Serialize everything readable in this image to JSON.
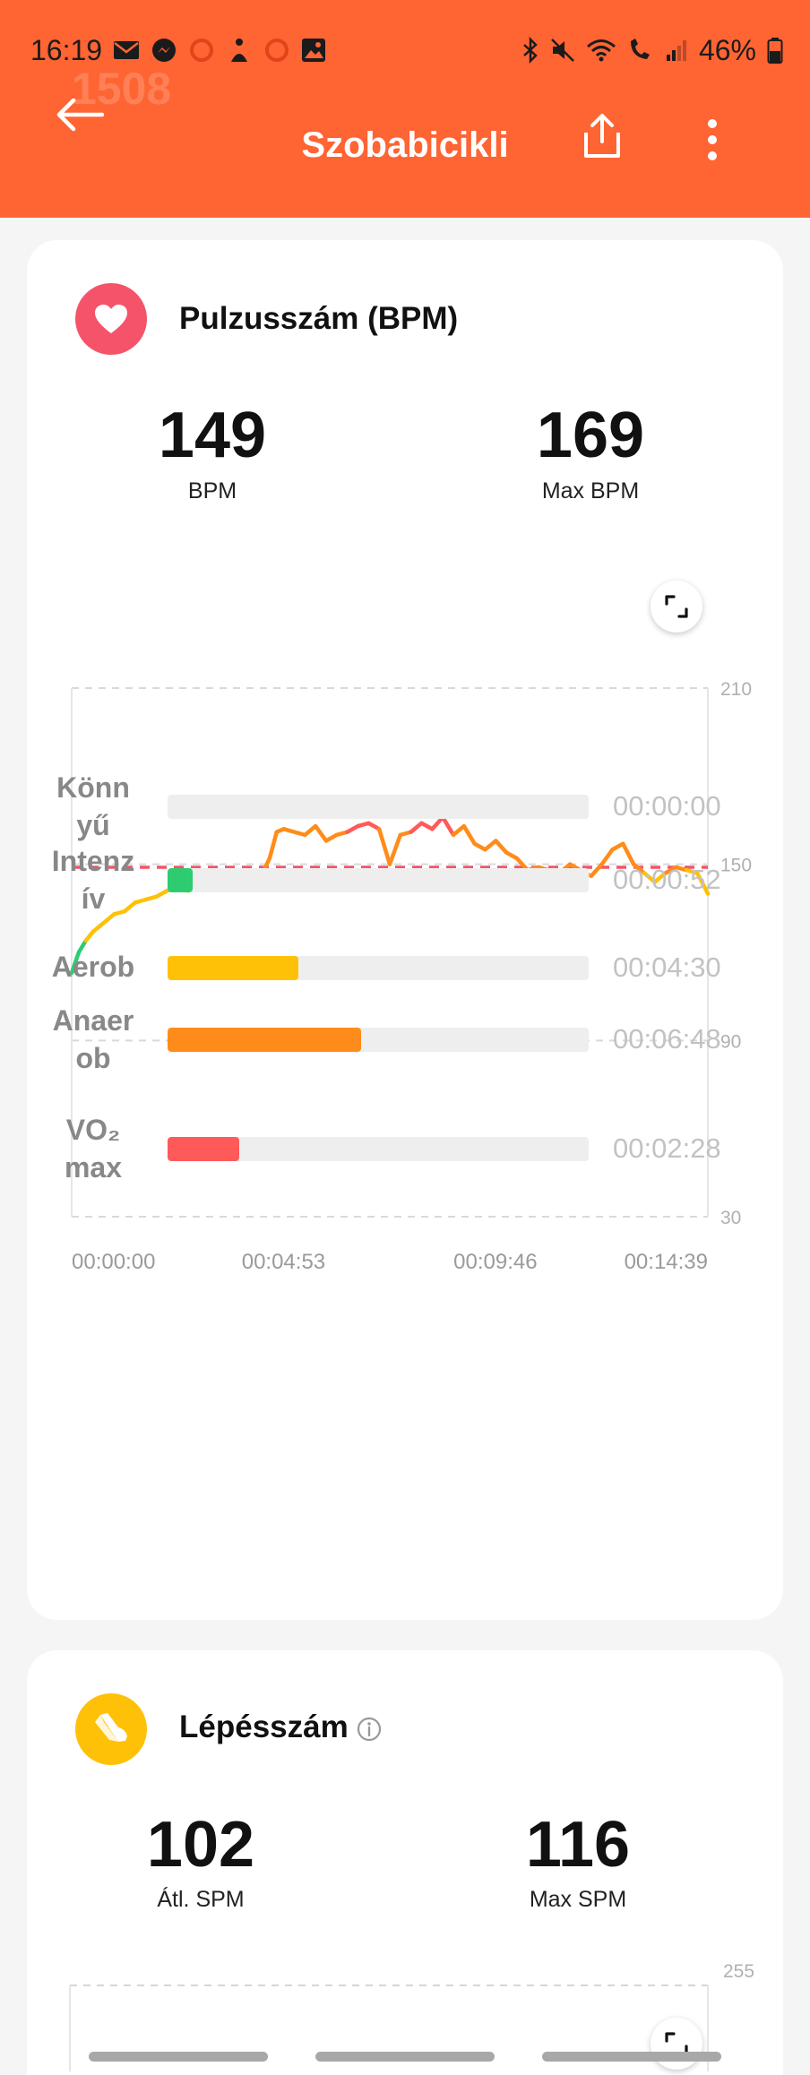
{
  "status_bar": {
    "time": "16:19",
    "battery": "46%",
    "left_icons": [
      "mail-icon",
      "messenger-icon",
      "circle-icon",
      "accessibility-icon",
      "circle-icon",
      "image-icon"
    ],
    "right_icons": [
      "bluetooth-icon",
      "mute-icon",
      "wifi-icon",
      "wifi-call-icon",
      "signal-icon",
      "battery-icon"
    ]
  },
  "header": {
    "title": "Szobabicikli",
    "ghost_text": "1508",
    "back_icon": "arrow-left-icon",
    "share_icon": "share-icon",
    "more_icon": "more-vertical-icon",
    "bg_color": "#ff6433"
  },
  "heart_rate": {
    "title": "Pulzusszám (BPM)",
    "icon": "heart-icon",
    "icon_color": "#f5536a",
    "avg_value": "149",
    "avg_label": "BPM",
    "max_value": "169",
    "max_label": "Max BPM",
    "chart_data": {
      "type": "line",
      "x_ticks": [
        "00:00:00",
        "00:04:53",
        "00:09:46",
        "00:14:39"
      ],
      "y_ticks": [
        "210",
        "150",
        "90",
        "30"
      ],
      "ylim": [
        30,
        210
      ],
      "xlim_seconds": [
        0,
        900
      ],
      "avg_line": 149,
      "grid": true,
      "x_seconds": [
        0,
        10,
        20,
        30,
        40,
        50,
        60,
        75,
        90,
        105,
        120,
        135,
        150,
        165,
        180,
        195,
        210,
        225,
        240,
        255,
        270,
        280,
        290,
        300,
        315,
        330,
        345,
        360,
        375,
        390,
        405,
        420,
        435,
        450,
        465,
        480,
        495,
        510,
        525,
        540,
        555,
        570,
        585,
        600,
        615,
        630,
        645,
        660,
        675,
        690,
        705,
        720,
        735,
        750,
        765,
        780,
        795,
        810,
        825,
        840,
        855,
        870,
        885,
        900
      ],
      "values": [
        113,
        120,
        124,
        127,
        129,
        131,
        133,
        134,
        137,
        138,
        139,
        141,
        142,
        141,
        144,
        146,
        145,
        147,
        144,
        145,
        147,
        152,
        161,
        162,
        161,
        160,
        163,
        158,
        160,
        161,
        163,
        164,
        162,
        150,
        160,
        161,
        164,
        162,
        166,
        160,
        163,
        157,
        155,
        158,
        154,
        152,
        148,
        149,
        148,
        147,
        150,
        148,
        146,
        150,
        155,
        157,
        150,
        147,
        144,
        147,
        149,
        148,
        147,
        140
      ],
      "line_colors": {
        "intense": "#2ecc71",
        "aerobic": "#ffc107",
        "anaerobic": "#ff8c1a",
        "vo2max": "#ff5a5a"
      }
    },
    "zones": [
      {
        "label": "Könn\nyű",
        "time": "00:00:00",
        "fraction": 0.0,
        "color": "#eeeeee"
      },
      {
        "label": "Intenz\nív",
        "time": "00:00:52",
        "fraction": 0.06,
        "color": "#2ecc71"
      },
      {
        "label": "Aerob",
        "time": "00:04:30",
        "fraction": 0.31,
        "color": "#ffc107"
      },
      {
        "label": "Anaer\nob",
        "time": "00:06:48",
        "fraction": 0.46,
        "color": "#ff8c1a"
      },
      {
        "label": "VO₂\nmax",
        "time": "00:02:28",
        "fraction": 0.17,
        "color": "#ff5a5a"
      }
    ]
  },
  "steps": {
    "title": "Lépésszám",
    "icon": "shoe-icon",
    "icon_color": "#ffc107",
    "info_icon": "info-icon",
    "avg_value": "102",
    "avg_label": "Átl. SPM",
    "max_value": "116",
    "max_label": "Max SPM",
    "chart_data": {
      "type": "line",
      "y_ticks": [
        "255"
      ],
      "ylim_top": 255
    }
  }
}
